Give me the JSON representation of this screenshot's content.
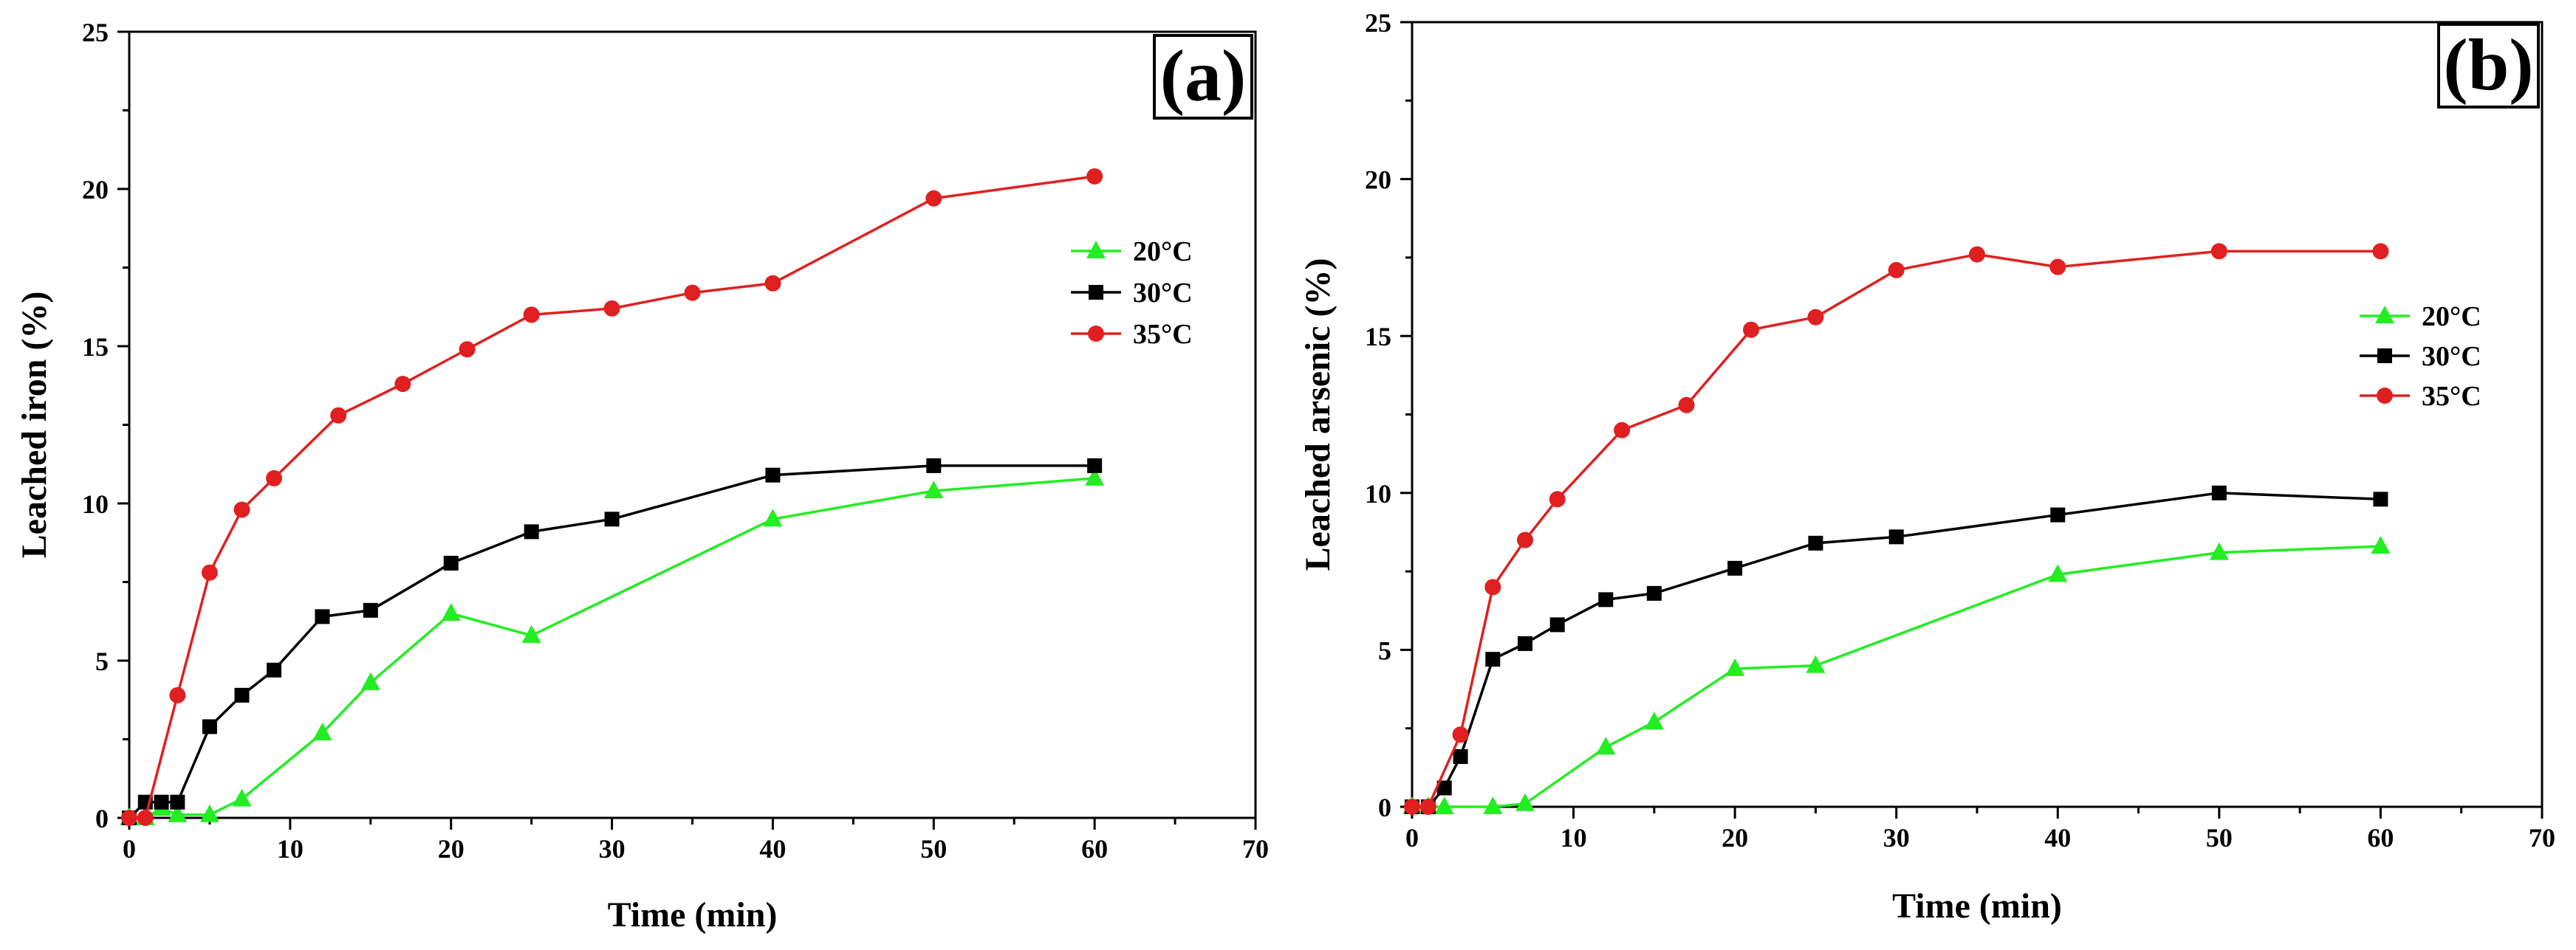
{
  "chart_data": [
    {
      "type": "line",
      "panel_label": "(a)",
      "xlabel": "Time (min)",
      "ylabel": "Leached iron (%)",
      "xlim": [
        0,
        70
      ],
      "ylim": [
        0,
        25
      ],
      "xticks": [
        0,
        10,
        20,
        30,
        40,
        50,
        60,
        70
      ],
      "yticks": [
        0,
        5,
        10,
        15,
        20,
        25
      ],
      "legend_position": "right",
      "series": [
        {
          "name": "20°C",
          "color": "#22ee22",
          "marker": "triangle",
          "x": [
            0,
            1,
            2,
            3,
            5,
            7,
            12,
            15,
            20,
            25,
            40,
            50,
            60
          ],
          "y": [
            0,
            0,
            0.3,
            0.1,
            0.1,
            0.6,
            2.7,
            4.3,
            6.5,
            5.8,
            9.5,
            10.4,
            10.8
          ]
        },
        {
          "name": "30°C",
          "color": "#000000",
          "marker": "square",
          "x": [
            0,
            1,
            2,
            3,
            5,
            7,
            9,
            12,
            15,
            20,
            25,
            30,
            40,
            50,
            60
          ],
          "y": [
            0,
            0.5,
            0.5,
            0.5,
            2.9,
            3.9,
            4.7,
            6.4,
            6.6,
            8.1,
            9.1,
            9.5,
            10.9,
            11.2,
            11.2
          ]
        },
        {
          "name": "35°C",
          "color": "#e02020",
          "marker": "circle",
          "x": [
            0,
            1,
            3,
            5,
            7,
            9,
            13,
            17,
            21,
            25,
            30,
            35,
            40,
            50,
            60
          ],
          "y": [
            0,
            0,
            3.9,
            7.8,
            9.8,
            10.8,
            12.8,
            13.8,
            14.9,
            16.0,
            16.2,
            16.7,
            17.0,
            19.7,
            20.4
          ]
        }
      ]
    },
    {
      "type": "line",
      "panel_label": "(b)",
      "xlabel": "Time (min)",
      "ylabel": "Leached arsenic (%)",
      "xlim": [
        0,
        70
      ],
      "ylim": [
        0,
        25
      ],
      "xticks": [
        0,
        10,
        20,
        30,
        40,
        50,
        60,
        70
      ],
      "yticks": [
        0,
        5,
        10,
        15,
        20,
        25
      ],
      "legend_position": "right",
      "series": [
        {
          "name": "20°C",
          "color": "#22ee22",
          "marker": "triangle",
          "x": [
            0,
            1,
            2,
            5,
            7,
            12,
            15,
            20,
            25,
            40,
            50,
            60
          ],
          "y": [
            0,
            0,
            0,
            0,
            0.1,
            1.9,
            2.7,
            4.4,
            4.5,
            7.4,
            8.1,
            8.3
          ]
        },
        {
          "name": "30°C",
          "color": "#000000",
          "marker": "square",
          "x": [
            0,
            1,
            2,
            3,
            5,
            7,
            9,
            12,
            15,
            20,
            25,
            30,
            40,
            50,
            60
          ],
          "y": [
            0,
            0,
            0.6,
            1.6,
            4.7,
            5.2,
            5.8,
            6.6,
            6.8,
            7.6,
            8.4,
            8.6,
            9.3,
            10.0,
            9.8
          ]
        },
        {
          "name": "35°C",
          "color": "#e02020",
          "marker": "circle",
          "x": [
            0,
            1,
            3,
            5,
            7,
            9,
            13,
            17,
            21,
            25,
            30,
            35,
            40,
            50,
            60
          ],
          "y": [
            0,
            0,
            2.3,
            7.0,
            8.5,
            9.8,
            12.0,
            12.8,
            15.2,
            15.6,
            17.1,
            17.6,
            17.2,
            17.7,
            17.7
          ]
        }
      ]
    }
  ]
}
